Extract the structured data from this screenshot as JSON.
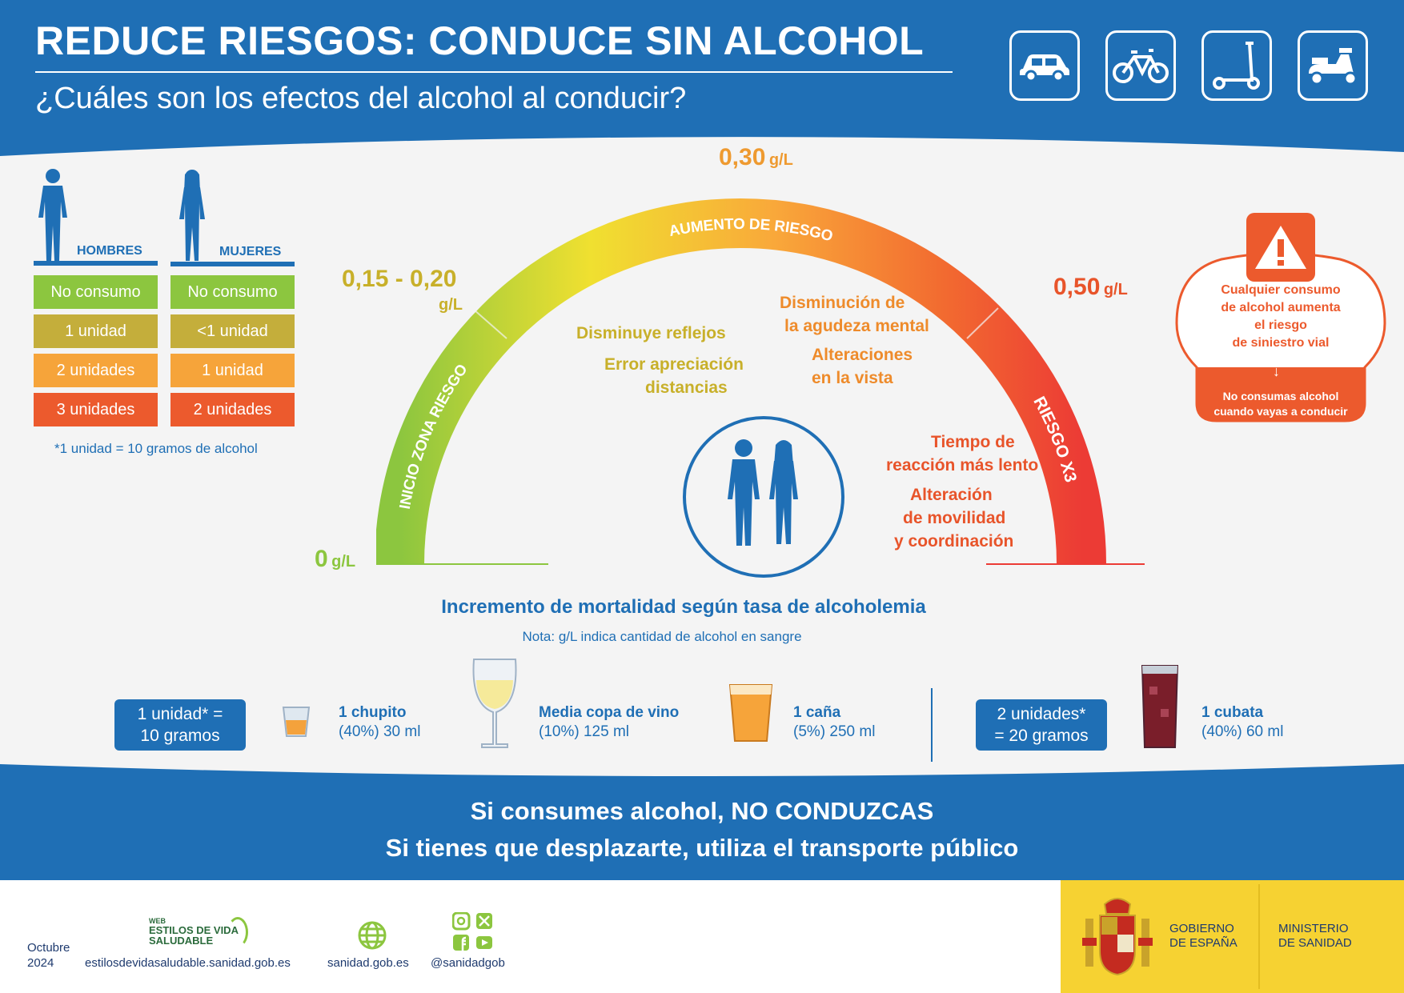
{
  "header": {
    "title": "REDUCE RIESGOS: CONDUCE SIN ALCOHOL",
    "subtitle": "¿Cuáles son los efectos del alcohol al conducir?",
    "vehicle_icons": [
      "car-icon",
      "bicycle-icon",
      "scooter-icon",
      "motorbike-icon"
    ]
  },
  "units_table": {
    "men_label": "HOMBRES",
    "women_label": "MUJERES",
    "men_rows": [
      "No consumo",
      "1 unidad",
      "2 unidades",
      "3 unidades"
    ],
    "women_rows": [
      "No consumo",
      "<1 unidad",
      "1 unidad",
      "2 unidades"
    ],
    "footnote": "*1 unidad = 10 gramos de alcohol"
  },
  "gauge": {
    "level_0": {
      "value": "0",
      "unit": "g/L"
    },
    "level_1": {
      "value": "0,15 - 0,20",
      "unit": "g/L"
    },
    "level_2": {
      "value": "0,30",
      "unit": "g/L"
    },
    "level_3": {
      "value": "0,50",
      "unit": "g/L"
    },
    "arc_label_start": "INICIO ZONA RIESGO",
    "arc_label_mid": "AUMENTO DE RIESGO",
    "arc_label_end": "RIESGO X3",
    "effects_yellow_1": "Disminuye reflejos",
    "effects_yellow_2a": "Error apreciación",
    "effects_yellow_2b": "distancias",
    "effects_orange_1a": "Disminución de",
    "effects_orange_1b": "la agudeza mental",
    "effects_orange_2a": "Alteraciones",
    "effects_orange_2b": "en la vista",
    "effects_red_1a": "Tiempo de",
    "effects_red_1b": "reacción más lento",
    "effects_red_2a": "Alteración",
    "effects_red_2b": "de movilidad",
    "effects_red_2c": "y coordinación",
    "caption": "Incremento de mortalidad según tasa de alcoholemia",
    "note": "Nota: g/L indica cantidad de alcohol en sangre"
  },
  "warning": {
    "line1": "Cualquier consumo",
    "line2": "de alcohol aumenta",
    "line3": "el riesgo",
    "line4": "de siniestro vial",
    "bottom1": "No consumas alcohol",
    "bottom2": "cuando vayas a conducir"
  },
  "drinks": {
    "unit1_a": "1 unidad* =",
    "unit1_b": "10 gramos",
    "unit2_a": "2 unidades*",
    "unit2_b": "= 20 gramos",
    "items": [
      {
        "name": "1 chupito",
        "detail": "(40%) 30 ml"
      },
      {
        "name": "Media copa de vino",
        "detail": "(10%) 125 ml"
      },
      {
        "name": "1 caña",
        "detail": "(5%) 250 ml"
      },
      {
        "name": "1 cubata",
        "detail": "(40%) 60 ml"
      }
    ]
  },
  "banner": {
    "line1": "Si consumes alcohol, NO CONDUZCAS",
    "line2": "Si tienes que desplazarte, utiliza el transporte público"
  },
  "footer": {
    "date1": "Octubre",
    "date2": "2024",
    "web_small": "WEB",
    "web_logo1": "ESTILOS DE VIDA",
    "web_logo2": "SALUDABLE",
    "web_url": "estilosdevidasaludable.sanidad.gob.es",
    "site": "sanidad.gob.es",
    "social": "@sanidadgob",
    "gov1": "GOBIERNO",
    "gov2": "DE ESPAÑA",
    "min1": "MINISTERIO",
    "min2": "DE SANIDAD"
  },
  "colors": {
    "blue": "#1f6fb5",
    "green": "#8cc63f",
    "yellow": "#f5d22f",
    "orange": "#f6a43a",
    "red": "#ec3b35",
    "gov_yellow": "#f5d22f"
  }
}
